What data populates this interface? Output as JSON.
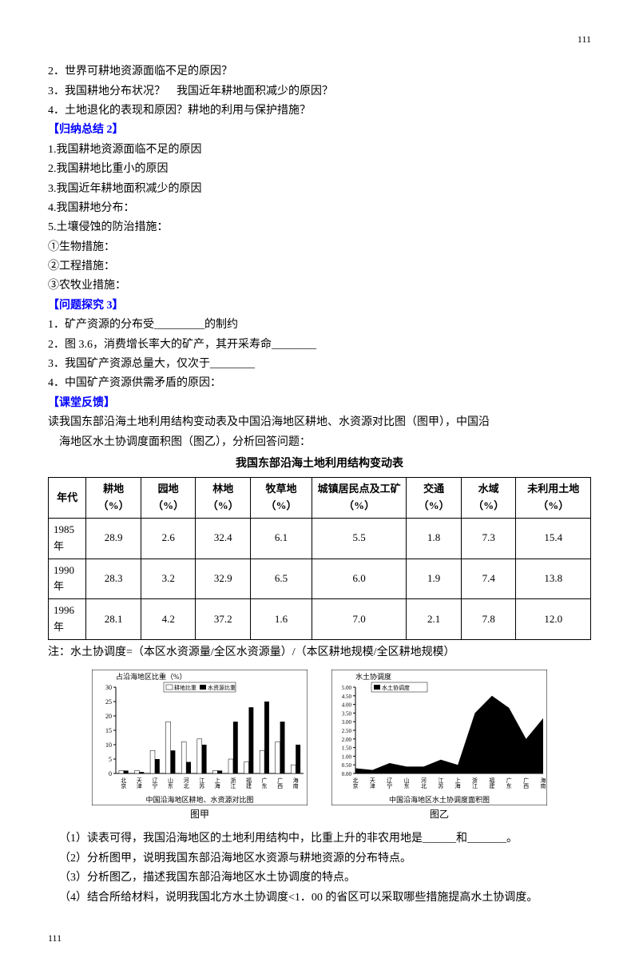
{
  "page_number": "111",
  "questions_top": [
    "2．世界可耕地资源面临不足的原因？",
    "3．我国耕地分布状况？　我国近年耕地面积减少的原因？",
    "4．土地退化的表现和原因？耕地的利用与保护措施？"
  ],
  "summary2_header": "【归纳总结 2】",
  "summary2_items": [
    "1.我国耕地资源面临不足的原因",
    "",
    "2.我国耕地比重小的原因",
    "",
    "3.我国近年耕地面积减少的原因",
    "",
    "4.我国耕地分布：",
    "5.土壤侵蚀的防治措施：",
    "①生物措施：",
    "②工程措施：",
    "③农牧业措施："
  ],
  "explore3_header": "【问题探究 3】",
  "explore3_items": [
    "1．矿产资源的分布受_________的制约",
    "2．图 3.6，消费增长率大的矿产，其开采寿命________",
    "3．我国矿产资源总量大，仅次于________",
    "4．中国矿产资源供需矛盾的原因："
  ],
  "feedback_header": "【课堂反馈】",
  "feedback_intro1": "读我国东部沿海土地利用结构变动表及中国沿海地区耕地、水资源对比图（图甲），中国沿",
  "feedback_intro2": "海地区水土协调度面积图（图乙），分析回答问题：",
  "table_title": "我国东部沿海土地利用结构变动表",
  "table": {
    "columns": [
      "年代",
      "耕地（%）",
      "园地（%）",
      "林地（%）",
      "牧草地（%）",
      "城镇居民点及工矿（%）",
      "交通（%）",
      "水域（%）",
      "未利用土地（%）"
    ],
    "rows": [
      [
        "1985年",
        "28.9",
        "2.6",
        "32.4",
        "6.1",
        "5.5",
        "1.8",
        "7.3",
        "15.4"
      ],
      [
        "1990年",
        "28.3",
        "3.2",
        "32.9",
        "6.5",
        "6.0",
        "1.9",
        "7.4",
        "13.8"
      ],
      [
        "1996年",
        "28.1",
        "4.2",
        "37.2",
        "1.6",
        "7.0",
        "2.1",
        "7.8",
        "12.0"
      ]
    ]
  },
  "note": "注：水土协调度=（本区水资源量/全区水资源量）/（本区耕地规模/全区耕地规模）",
  "chart_a": {
    "title": "占沿海地区比重（%）",
    "legend": [
      "耕地比重",
      "水资源比重"
    ],
    "x_axis_label": "中国沿海地区耕地、水资源对比图",
    "y_max": 30,
    "y_ticks": [
      0,
      5,
      10,
      15,
      20,
      25,
      30
    ],
    "categories": [
      "北京",
      "天津",
      "辽宁",
      "山东",
      "河北",
      "江苏",
      "上海",
      "浙江",
      "福建",
      "广东",
      "广西",
      "海南"
    ],
    "series": {
      "gengdi": [
        1,
        1,
        8,
        18,
        11,
        12,
        1,
        5,
        4,
        8,
        11,
        3
      ],
      "shuiziyuan": [
        1,
        0.5,
        5,
        8,
        4,
        10,
        1,
        18,
        23,
        25,
        18,
        10
      ]
    },
    "colors": {
      "gengdi": "#ffffff",
      "shuiziyuan": "#000000",
      "border": "#000000"
    },
    "caption": "图甲"
  },
  "chart_b": {
    "title": "水土协调度",
    "legend": [
      "水土协调度"
    ],
    "x_axis_label": "中国沿海地区水土协调度面积图",
    "y_max": 5.0,
    "y_ticks": [
      "0.00",
      "0.50",
      "1.00",
      "1.50",
      "2.00",
      "2.50",
      "3.00",
      "3.50",
      "4.00",
      "4.50",
      "5.00"
    ],
    "categories": [
      "北京",
      "天津",
      "辽宁",
      "山东",
      "河北",
      "江苏",
      "上海",
      "浙江",
      "福建",
      "广东",
      "广西",
      "海南"
    ],
    "values": [
      0.3,
      0.2,
      0.6,
      0.4,
      0.4,
      0.8,
      0.5,
      3.5,
      4.5,
      3.8,
      2.0,
      3.2
    ],
    "colors": {
      "fill": "#000000",
      "border": "#000000"
    },
    "caption": "图乙"
  },
  "sub_questions": [
    "（1）读表可得，我国沿海地区的土地利用结构中，比重上升的非农用地是______和_______。",
    "（2）分析图甲，说明我国东部沿海地区水资源与耕地资源的分布特点。",
    "（3）分析图乙，描述我国东部沿海地区水土协调度的特点。",
    "（4）结合所给材料，说明我国北方水土协调度<1．00 的省区可以采取哪些措施提高水土协调度。"
  ]
}
